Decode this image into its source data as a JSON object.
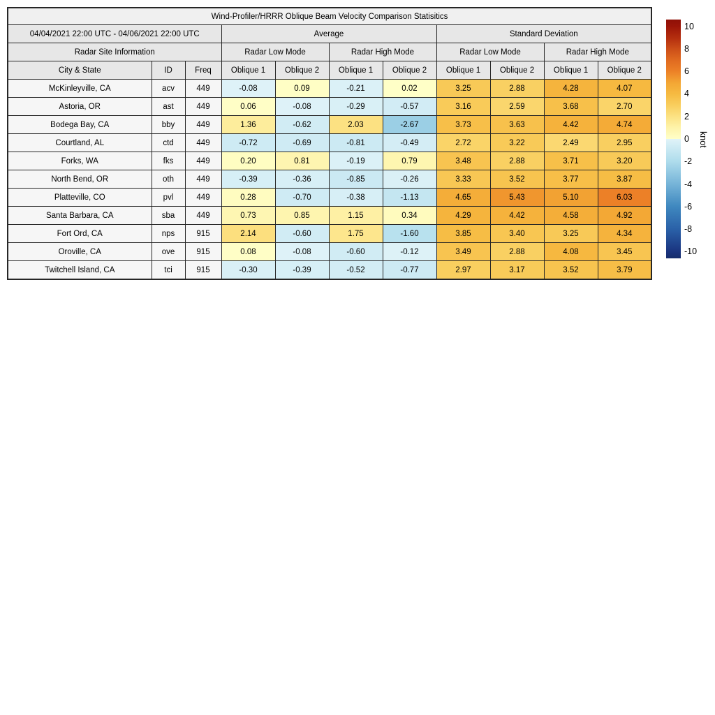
{
  "colors": {
    "border": "#262626",
    "title_bg": "#f0f0f0",
    "header_bg": "#e7e7e7",
    "row_label_bg": "#f6f6f6"
  },
  "chart_data": {
    "type": "table",
    "title": "Wind-Profiler/HRRR Oblique Beam Velocity Comparison Statisitics",
    "date_range": "04/04/2021 22:00 UTC - 04/06/2021 22:00 UTC",
    "groups": [
      "Average",
      "Standard Deviation"
    ],
    "site_info_label": "Radar Site Information",
    "mode_headers": [
      "Radar Low Mode",
      "Radar High Mode",
      "Radar Low Mode",
      "Radar High Mode"
    ],
    "columns": [
      "City & State",
      "ID",
      "Freq",
      "Oblique 1",
      "Oblique 2",
      "Oblique 1",
      "Oblique 2",
      "Oblique 1",
      "Oblique 2",
      "Oblique 1",
      "Oblique 2"
    ],
    "rows": [
      {
        "city": "McKinleyville, CA",
        "id": "acv",
        "freq": "449",
        "values": [
          -0.08,
          0.09,
          -0.21,
          0.02,
          3.25,
          2.88,
          4.28,
          4.07
        ]
      },
      {
        "city": "Astoria, OR",
        "id": "ast",
        "freq": "449",
        "values": [
          0.06,
          -0.08,
          -0.29,
          -0.57,
          3.16,
          2.59,
          3.68,
          2.7
        ]
      },
      {
        "city": "Bodega Bay, CA",
        "id": "bby",
        "freq": "449",
        "values": [
          1.36,
          -0.62,
          2.03,
          -2.67,
          3.73,
          3.63,
          4.42,
          4.74
        ]
      },
      {
        "city": "Courtland, AL",
        "id": "ctd",
        "freq": "449",
        "values": [
          -0.72,
          -0.69,
          -0.81,
          -0.49,
          2.72,
          3.22,
          2.49,
          2.95
        ]
      },
      {
        "city": "Forks, WA",
        "id": "fks",
        "freq": "449",
        "values": [
          0.2,
          0.81,
          -0.19,
          0.79,
          3.48,
          2.88,
          3.71,
          3.2
        ]
      },
      {
        "city": "North Bend, OR",
        "id": "oth",
        "freq": "449",
        "values": [
          -0.39,
          -0.36,
          -0.85,
          -0.26,
          3.33,
          3.52,
          3.77,
          3.87
        ]
      },
      {
        "city": "Platteville, CO",
        "id": "pvl",
        "freq": "449",
        "values": [
          0.28,
          -0.7,
          -0.38,
          -1.13,
          4.65,
          5.43,
          5.1,
          6.03
        ]
      },
      {
        "city": "Santa Barbara, CA",
        "id": "sba",
        "freq": "449",
        "values": [
          0.73,
          0.85,
          1.15,
          0.34,
          4.29,
          4.42,
          4.58,
          4.92
        ]
      },
      {
        "city": "Fort Ord, CA",
        "id": "nps",
        "freq": "915",
        "values": [
          2.14,
          -0.6,
          1.75,
          -1.6,
          3.85,
          3.4,
          3.25,
          4.34
        ]
      },
      {
        "city": "Oroville, CA",
        "id": "ove",
        "freq": "915",
        "values": [
          0.08,
          -0.08,
          -0.6,
          -0.12,
          3.49,
          2.88,
          4.08,
          3.45
        ]
      },
      {
        "city": "Twitchell Island, CA",
        "id": "tci",
        "freq": "915",
        "values": [
          -0.3,
          -0.39,
          -0.52,
          -0.77,
          2.97,
          3.17,
          3.52,
          3.79
        ]
      }
    ],
    "colorbar": {
      "label": "knot",
      "ticks": [
        10,
        8,
        6,
        4,
        2,
        0,
        -2,
        -4,
        -6,
        -8,
        -10
      ],
      "vmin": -10.6,
      "vmax": 10.6,
      "positive_anchors": [
        [
          0,
          "#FFFFC8"
        ],
        [
          1,
          "#FEF3AA"
        ],
        [
          2,
          "#FCE283"
        ],
        [
          3,
          "#F9CE5E"
        ],
        [
          4,
          "#F6BA41"
        ],
        [
          5,
          "#F3A634"
        ],
        [
          6,
          "#EC8127"
        ],
        [
          7,
          "#E06A20"
        ],
        [
          8,
          "#CC4E18"
        ],
        [
          9,
          "#B32D0E"
        ],
        [
          10,
          "#9C1508"
        ],
        [
          10.6,
          "#8F1007"
        ]
      ],
      "negative_anchors": [
        [
          0,
          "#E0F3F8"
        ],
        [
          2,
          "#AEDCEC"
        ],
        [
          4,
          "#76B4D8"
        ],
        [
          6,
          "#3F88BF"
        ],
        [
          8,
          "#2A61A8"
        ],
        [
          10,
          "#1A347F"
        ],
        [
          10.6,
          "#152C6B"
        ]
      ]
    }
  }
}
